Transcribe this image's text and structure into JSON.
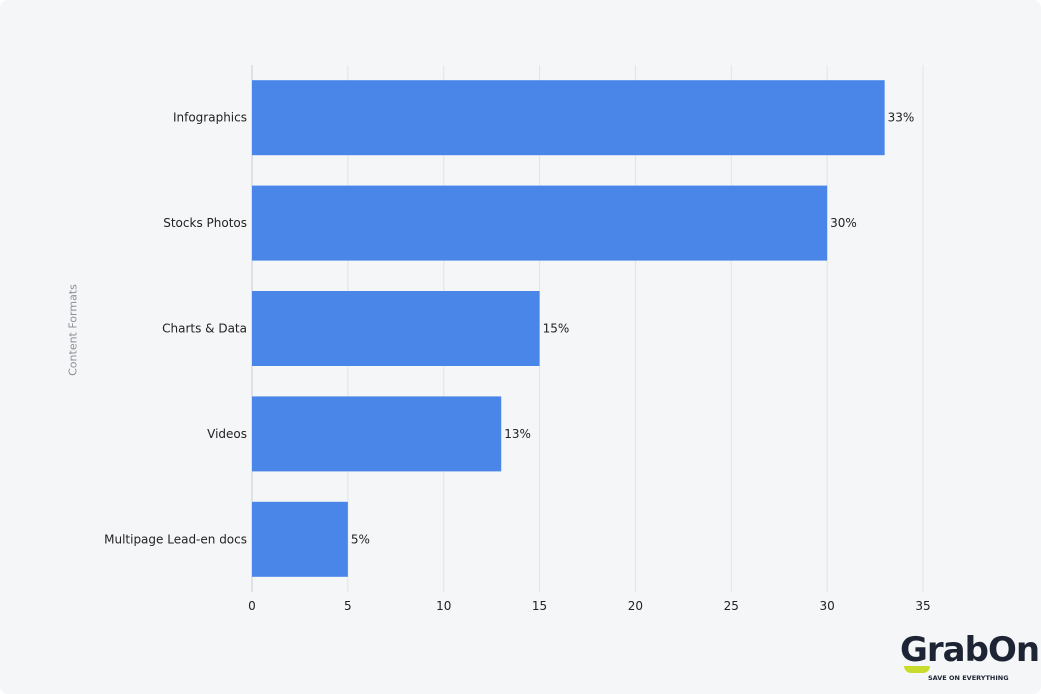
{
  "chart_data": {
    "type": "bar",
    "orientation": "horizontal",
    "categories": [
      "Infographics",
      "Stocks Photos",
      "Charts & Data",
      "Videos",
      "Multipage Lead-en docs"
    ],
    "values": [
      33,
      30,
      15,
      13,
      5
    ],
    "data_labels": [
      "33%",
      "30%",
      "15%",
      "13%",
      "5%"
    ],
    "ylabel": "Content Formats",
    "xlabel": "",
    "xlim": [
      0,
      35
    ],
    "xticks": [
      0,
      5,
      10,
      15,
      20,
      25,
      30,
      35
    ],
    "grid": true,
    "bar_color": "#4a86e8"
  },
  "logo": {
    "name": "GrabOn",
    "tagline": "SAVE ON EVERYTHING"
  }
}
